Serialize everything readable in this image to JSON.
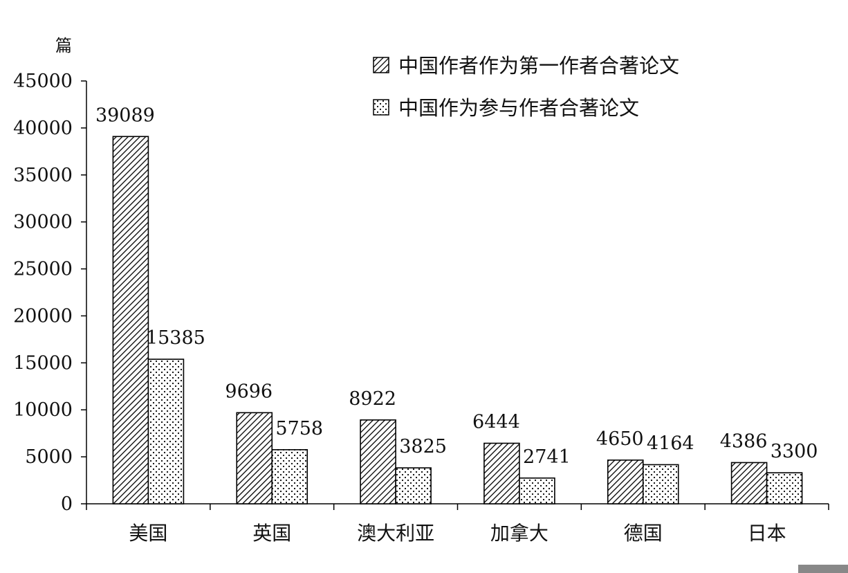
{
  "chart_data": {
    "type": "bar",
    "unit": "篇",
    "categories": [
      "美国",
      "英国",
      "澳大利亚",
      "加拿大",
      "德国",
      "日本"
    ],
    "series": [
      {
        "name": "中国作者作为第一作者合著论文",
        "pattern": "diagonal-hatch",
        "values": [
          39089,
          9696,
          8922,
          6444,
          4650,
          4386
        ]
      },
      {
        "name": "中国作为参与作者合著论文",
        "pattern": "dots",
        "values": [
          15385,
          5758,
          3825,
          2741,
          4164,
          3300
        ]
      }
    ],
    "ylim": [
      0,
      45000
    ],
    "yticks": [
      0,
      5000,
      10000,
      15000,
      20000,
      25000,
      30000,
      35000,
      40000,
      45000
    ],
    "grid": false,
    "legend_position": "top-right",
    "colors": {
      "stroke": "#000000",
      "fill": "#ffffff"
    }
  }
}
